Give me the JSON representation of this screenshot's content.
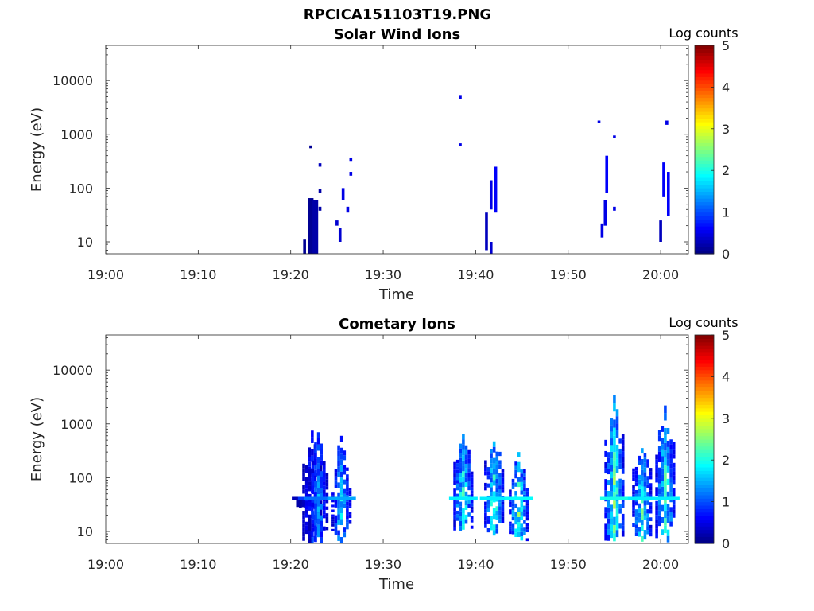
{
  "figure": {
    "title": "RPCICA151103T19.PNG"
  },
  "colorbar": {
    "label": "Log counts",
    "range": [
      0,
      5
    ],
    "ticks": [
      "0",
      "1",
      "2",
      "3",
      "4",
      "5"
    ],
    "colormap": "jet"
  },
  "chart_data": [
    {
      "type": "heatmap",
      "title": "Solar Wind Ions",
      "xlabel": "Time",
      "ylabel": "Energy (eV)",
      "xlim": [
        "19:00",
        "20:03"
      ],
      "ylim": [
        6,
        45000
      ],
      "yscale": "log",
      "xticks": [
        "19:00",
        "19:10",
        "19:20",
        "19:30",
        "19:40",
        "19:50",
        "20:00"
      ],
      "yticks": [
        "10",
        "100",
        "1000",
        "10000"
      ],
      "colorbar_label": "Log counts",
      "clim": [
        0,
        5
      ],
      "cells": [
        {
          "t": "19:21:30",
          "e": [
            6,
            11
          ],
          "v": 0.1
        },
        {
          "t": "19:22:10",
          "e": [
            6,
            65
          ],
          "v": 0.1
        },
        {
          "t": "19:22:10",
          "e": [
            550,
            620
          ],
          "v": 0.1
        },
        {
          "t": "19:22:40",
          "e": [
            6,
            60
          ],
          "v": 0.2
        },
        {
          "t": "19:23:10",
          "e": [
            38,
            45
          ],
          "v": 0.2
        },
        {
          "t": "19:23:10",
          "e": [
            80,
            95
          ],
          "v": 0.2
        },
        {
          "t": "19:23:10",
          "e": [
            250,
            290
          ],
          "v": 0.3
        },
        {
          "t": "19:25:00",
          "e": [
            20,
            25
          ],
          "v": 0.4
        },
        {
          "t": "19:25:20",
          "e": [
            10,
            18
          ],
          "v": 0.4
        },
        {
          "t": "19:25:40",
          "e": [
            60,
            100
          ],
          "v": 0.5
        },
        {
          "t": "19:26:10",
          "e": [
            35,
            45
          ],
          "v": 0.5
        },
        {
          "t": "19:41:10",
          "e": [
            7,
            35
          ],
          "v": 0.3
        },
        {
          "t": "19:41:40",
          "e": [
            6,
            10
          ],
          "v": 0.4
        },
        {
          "t": "19:41:40",
          "e": [
            40,
            140
          ],
          "v": 0.5
        },
        {
          "t": "19:42:10",
          "e": [
            35,
            250
          ],
          "v": 0.6
        },
        {
          "t": "19:53:40",
          "e": [
            12,
            22
          ],
          "v": 0.5
        },
        {
          "t": "19:54:00",
          "e": [
            20,
            60
          ],
          "v": 0.5
        },
        {
          "t": "19:54:10",
          "e": [
            80,
            400
          ],
          "v": 0.6
        },
        {
          "t": "19:55:00",
          "e": [
            38,
            45
          ],
          "v": 0.5
        },
        {
          "t": "20:00:00",
          "e": [
            10,
            25
          ],
          "v": 0.3
        },
        {
          "t": "20:00:20",
          "e": [
            70,
            300
          ],
          "v": 0.6
        },
        {
          "t": "20:00:50",
          "e": [
            30,
            200
          ],
          "v": 0.6
        },
        {
          "t": "19:38:20",
          "e": [
            4500,
            5200
          ],
          "v": 0.5
        },
        {
          "t": "19:38:20",
          "e": [
            600,
            680
          ],
          "v": 0.5
        },
        {
          "t": "19:53:20",
          "e": [
            1600,
            1800
          ],
          "v": 0.5
        },
        {
          "t": "19:55:00",
          "e": [
            850,
            950
          ],
          "v": 0.5
        },
        {
          "t": "20:00:40",
          "e": [
            1500,
            1800
          ],
          "v": 0.5
        },
        {
          "t": "19:26:30",
          "e": [
            170,
            200
          ],
          "v": 0.5
        },
        {
          "t": "19:26:30",
          "e": [
            320,
            370
          ],
          "v": 0.5
        }
      ]
    },
    {
      "type": "heatmap",
      "title": "Cometary Ions",
      "xlabel": "Time",
      "ylabel": "Energy (eV)",
      "xlim": [
        "19:00",
        "20:03"
      ],
      "ylim": [
        6,
        45000
      ],
      "yscale": "log",
      "xticks": [
        "19:00",
        "19:10",
        "19:20",
        "19:30",
        "19:40",
        "19:50",
        "20:00"
      ],
      "yticks": [
        "10",
        "100",
        "1000",
        "10000"
      ],
      "colorbar_label": "Log counts",
      "clim": [
        0,
        5
      ],
      "bursts": [
        {
          "t": "19:21:40",
          "e": [
            28,
            45
          ],
          "v": 0.3
        },
        {
          "t": "19:22:20",
          "e": [
            6,
            750
          ],
          "v": 1.0
        },
        {
          "t": "19:23:00",
          "e": [
            6,
            700
          ],
          "v": 1.3
        },
        {
          "t": "19:25:30",
          "e": [
            6,
            600
          ],
          "v": 1.6
        },
        {
          "t": "19:38:40",
          "e": [
            10,
            650
          ],
          "v": 2.0
        },
        {
          "t": "19:42:00",
          "e": [
            8,
            600
          ],
          "v": 2.0
        },
        {
          "t": "19:44:40",
          "e": [
            6,
            300
          ],
          "v": 2.1
        },
        {
          "t": "19:55:00",
          "e": [
            6,
            3400
          ],
          "v": 2.2
        },
        {
          "t": "19:58:00",
          "e": [
            6,
            450
          ],
          "v": 2.0
        },
        {
          "t": "20:00:30",
          "e": [
            6,
            2200
          ],
          "v": 2.0
        }
      ]
    }
  ]
}
